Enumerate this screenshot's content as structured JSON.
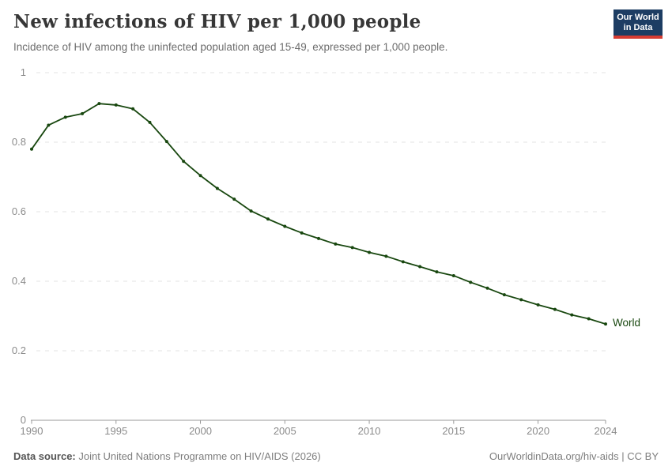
{
  "header": {
    "title": "New infections of HIV per 1,000 people",
    "subtitle": "Incidence of HIV among the uninfected population aged 15-49, expressed per 1,000 people.",
    "logo": {
      "line1": "Our World",
      "line2": "in Data",
      "bg_color": "#1d3d63",
      "accent_color": "#d73c32"
    }
  },
  "chart_data": {
    "type": "line",
    "title": "New infections of HIV per 1,000 people",
    "xlabel": "",
    "ylabel": "",
    "xlim": [
      1990,
      2024
    ],
    "ylim": [
      0,
      1
    ],
    "grid": "horizontal-dashed",
    "legend_position": "end-of-line",
    "x_ticks": [
      1990,
      1995,
      2000,
      2005,
      2010,
      2015,
      2020,
      2024
    ],
    "x_tick_labels": [
      "1990",
      "1995",
      "2000",
      "2005",
      "2010",
      "2015",
      "2020",
      "2024"
    ],
    "y_ticks": [
      0,
      0.2,
      0.4,
      0.6,
      0.8,
      1
    ],
    "y_tick_labels": [
      "0",
      "0.2",
      "0.4",
      "0.6",
      "0.8",
      "1"
    ],
    "years": [
      1990,
      1991,
      1992,
      1993,
      1994,
      1995,
      1996,
      1997,
      1998,
      1999,
      2000,
      2001,
      2002,
      2003,
      2004,
      2005,
      2006,
      2007,
      2008,
      2009,
      2010,
      2011,
      2012,
      2013,
      2014,
      2015,
      2016,
      2017,
      2018,
      2019,
      2020,
      2021,
      2022,
      2023,
      2024
    ],
    "series": [
      {
        "name": "World",
        "color": "#18470f",
        "values": [
          0.78,
          0.849,
          0.872,
          0.882,
          0.911,
          0.907,
          0.896,
          0.857,
          0.802,
          0.745,
          0.704,
          0.667,
          0.636,
          0.602,
          0.579,
          0.558,
          0.539,
          0.523,
          0.507,
          0.497,
          0.483,
          0.472,
          0.456,
          0.442,
          0.427,
          0.416,
          0.397,
          0.38,
          0.361,
          0.347,
          0.332,
          0.319,
          0.303,
          0.292,
          0.277
        ]
      }
    ],
    "colors": {
      "gridline": "#e3e3e3",
      "axis": "#999999",
      "tick_label": "#8b8b8b"
    }
  },
  "footer": {
    "source_label": "Data source:",
    "source_text": "Joint United Nations Programme on HIV/AIDS (2026)",
    "right_text": "OurWorldinData.org/hiv-aids | CC BY"
  }
}
